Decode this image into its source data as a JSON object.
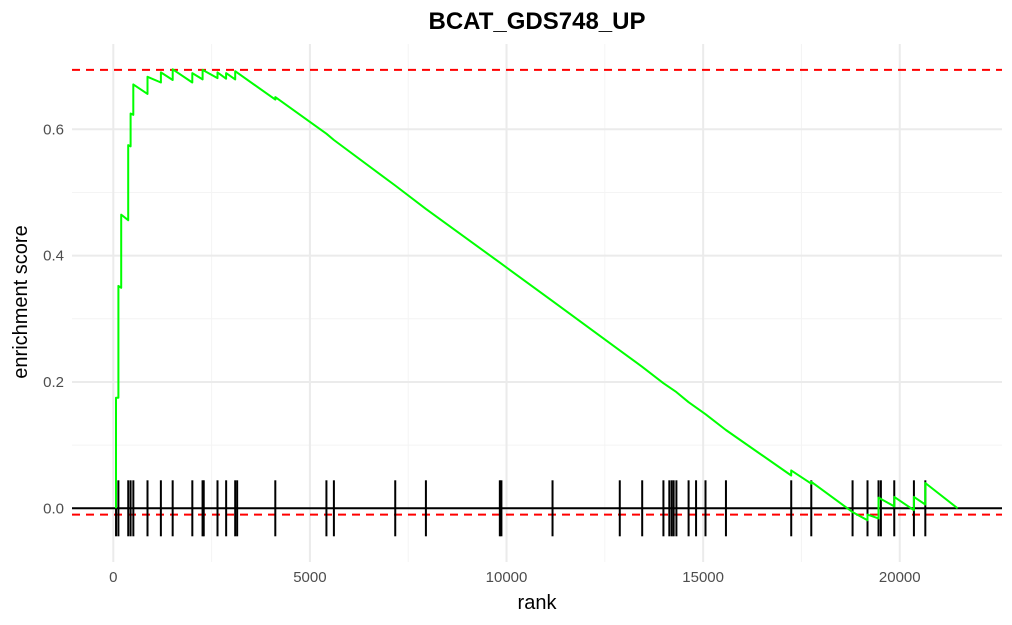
{
  "chart_data": {
    "type": "line",
    "title": "BCAT_GDS748_UP",
    "xlabel": "rank",
    "ylabel": "enrichment score",
    "xlim": [
      -1050,
      22600
    ],
    "ylim": [
      -0.085,
      0.735
    ],
    "xticks": [
      0,
      5000,
      10000,
      15000,
      20000
    ],
    "xtick_labels": [
      "0",
      "5000",
      "10000",
      "15000",
      "20000"
    ],
    "yticks": [
      0.0,
      0.2,
      0.4,
      0.6
    ],
    "ytick_labels": [
      "0.0",
      "0.2",
      "0.4",
      "0.6"
    ],
    "grid": true,
    "colors": {
      "curve": "#00ff00",
      "threshold": "#ff0000",
      "baseline": "#000000",
      "hits": "#000000"
    },
    "thresholds": [
      0.694,
      -0.01
    ],
    "baseline": 0.0,
    "hit_ranks": [
      70,
      130,
      380,
      440,
      510,
      870,
      1210,
      1510,
      2010,
      2270,
      2300,
      2650,
      2870,
      3100,
      3150,
      4120,
      5420,
      5610,
      7170,
      7950,
      9830,
      9870,
      11170,
      12880,
      13450,
      13990,
      14140,
      14200,
      14250,
      14320,
      14630,
      14820,
      15060,
      15580,
      17240,
      17750,
      18800,
      19180,
      19460,
      19520,
      19860,
      20360,
      20650
    ],
    "series": [
      {
        "values": [
          [
            70,
            0.0
          ],
          [
            70,
            0.175
          ],
          [
            130,
            0.175
          ],
          [
            130,
            0.352
          ],
          [
            200,
            0.349
          ],
          [
            200,
            0.465
          ],
          [
            380,
            0.456
          ],
          [
            380,
            0.575
          ],
          [
            440,
            0.573
          ],
          [
            440,
            0.625
          ],
          [
            510,
            0.623
          ],
          [
            510,
            0.671
          ],
          [
            870,
            0.656
          ],
          [
            870,
            0.683
          ],
          [
            1210,
            0.674
          ],
          [
            1210,
            0.69
          ],
          [
            1510,
            0.678
          ],
          [
            1510,
            0.695
          ],
          [
            2010,
            0.674
          ],
          [
            2010,
            0.689
          ],
          [
            2270,
            0.679
          ],
          [
            2270,
            0.694
          ],
          [
            2650,
            0.681
          ],
          [
            2650,
            0.69
          ],
          [
            2870,
            0.68
          ],
          [
            2870,
            0.689
          ],
          [
            3100,
            0.679
          ],
          [
            3100,
            0.692
          ],
          [
            4120,
            0.647
          ],
          [
            4120,
            0.651
          ],
          [
            5420,
            0.593
          ],
          [
            5610,
            0.583
          ],
          [
            7170,
            0.511
          ],
          [
            7950,
            0.474
          ],
          [
            9830,
            0.389
          ],
          [
            11170,
            0.328
          ],
          [
            12880,
            0.25
          ],
          [
            13450,
            0.224
          ],
          [
            13990,
            0.198
          ],
          [
            14320,
            0.184
          ],
          [
            14630,
            0.168
          ],
          [
            15060,
            0.149
          ],
          [
            15580,
            0.124
          ],
          [
            17240,
            0.052
          ],
          [
            17240,
            0.06
          ],
          [
            17750,
            0.039
          ],
          [
            17750,
            0.042
          ],
          [
            18800,
            -0.006
          ],
          [
            19180,
            -0.019
          ],
          [
            19180,
            -0.01
          ],
          [
            19460,
            -0.016
          ],
          [
            19460,
            0.017
          ],
          [
            19860,
            0.003
          ],
          [
            19860,
            0.018
          ],
          [
            20360,
            -0.003
          ],
          [
            20360,
            0.018
          ],
          [
            20650,
            0.006
          ],
          [
            20650,
            0.04
          ],
          [
            21470,
            0.0
          ]
        ]
      }
    ]
  }
}
